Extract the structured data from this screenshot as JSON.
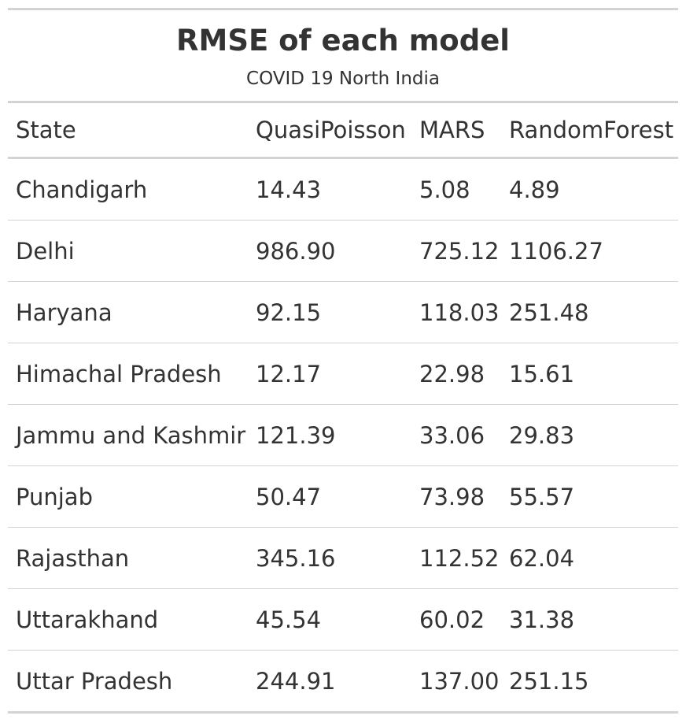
{
  "title": "RMSE of each model",
  "subtitle": "COVID 19 North India",
  "columns": [
    "State",
    "QuasiPoisson",
    "MARS",
    "RandomForest"
  ],
  "rows": [
    {
      "state": "Chandigarh",
      "quasipoisson": "14.43",
      "mars": "5.08",
      "randomforest": "4.89"
    },
    {
      "state": "Delhi",
      "quasipoisson": "986.90",
      "mars": "725.12",
      "randomforest": "1106.27"
    },
    {
      "state": "Haryana",
      "quasipoisson": "92.15",
      "mars": "118.03",
      "randomforest": "251.48"
    },
    {
      "state": "Himachal Pradesh",
      "quasipoisson": "12.17",
      "mars": "22.98",
      "randomforest": "15.61"
    },
    {
      "state": "Jammu and Kashmir",
      "quasipoisson": "121.39",
      "mars": "33.06",
      "randomforest": "29.83"
    },
    {
      "state": "Punjab",
      "quasipoisson": "50.47",
      "mars": "73.98",
      "randomforest": "55.57"
    },
    {
      "state": "Rajasthan",
      "quasipoisson": "345.16",
      "mars": "112.52",
      "randomforest": "62.04"
    },
    {
      "state": "Uttarakhand",
      "quasipoisson": "45.54",
      "mars": "60.02",
      "randomforest": "31.38"
    },
    {
      "state": "Uttar Pradesh",
      "quasipoisson": "244.91",
      "mars": "137.00",
      "randomforest": "251.15"
    }
  ],
  "chart_data": {
    "type": "table",
    "title": "RMSE of each model",
    "subtitle": "COVID 19 North India",
    "columns": [
      "State",
      "QuasiPoisson",
      "MARS",
      "RandomForest"
    ],
    "categories": [
      "Chandigarh",
      "Delhi",
      "Haryana",
      "Himachal Pradesh",
      "Jammu and Kashmir",
      "Punjab",
      "Rajasthan",
      "Uttarakhand",
      "Uttar Pradesh"
    ],
    "series": [
      {
        "name": "QuasiPoisson",
        "values": [
          14.43,
          986.9,
          92.15,
          12.17,
          121.39,
          50.47,
          345.16,
          45.54,
          244.91
        ]
      },
      {
        "name": "MARS",
        "values": [
          5.08,
          725.12,
          118.03,
          22.98,
          33.06,
          73.98,
          112.52,
          60.02,
          137.0
        ]
      },
      {
        "name": "RandomForest",
        "values": [
          4.89,
          1106.27,
          251.48,
          15.61,
          29.83,
          55.57,
          62.04,
          31.38,
          251.15
        ]
      }
    ]
  }
}
